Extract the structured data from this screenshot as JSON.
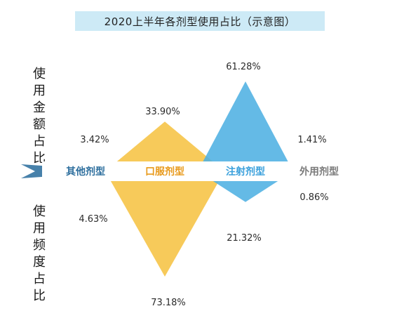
{
  "title": "2020上半年各剂型使用占比（示意图）",
  "top_axis_label": "使用金额占比",
  "bottom_axis_label": "使用频度占比",
  "chart_data": {
    "type": "area",
    "title": "2020上半年各剂型使用占比（示意图）",
    "categories": [
      "其他剂型",
      "口服剂型",
      "注射剂型",
      "外用剂型"
    ],
    "series": [
      {
        "name": "使用金额占比",
        "values": [
          3.42,
          33.9,
          61.28,
          1.41
        ]
      },
      {
        "name": "使用频度占比",
        "values": [
          4.63,
          73.18,
          21.32,
          0.86
        ]
      }
    ],
    "value_labels_top": [
      "3.42%",
      "33.90%",
      "61.28%",
      "1.41%"
    ],
    "value_labels_bottom": [
      "4.63%",
      "73.18%",
      "21.32%",
      "0.86%"
    ],
    "colors": [
      "#2e6f9e",
      "#f6c343",
      "#4fb0e3",
      "#b8b8b8"
    ],
    "label_colors": [
      "#2e6f9e",
      "#e89a1c",
      "#3aa0dc",
      "#7a7a7a"
    ]
  }
}
